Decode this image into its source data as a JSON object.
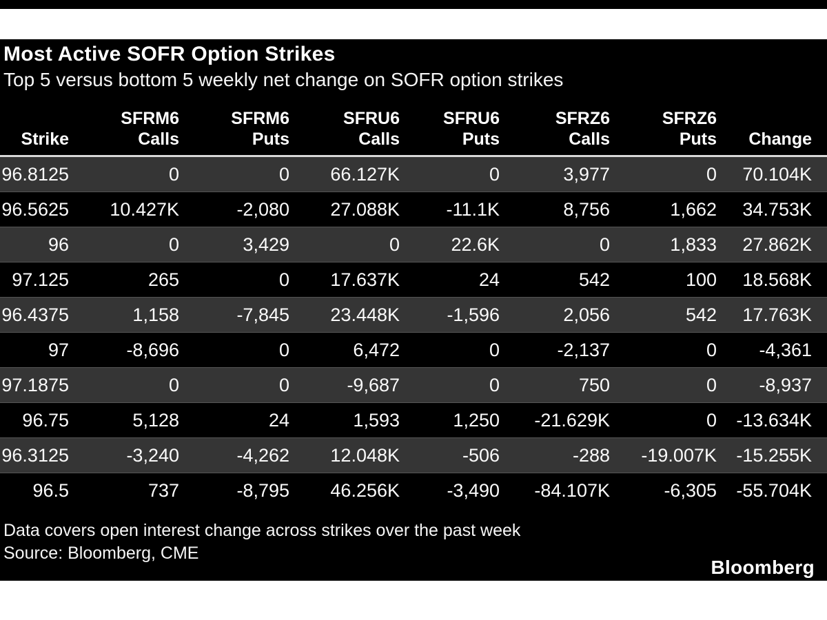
{
  "page": {
    "brand": "Bloomberg"
  },
  "colors": {
    "panel_bg": "#000000",
    "striped_row_bg": "#353535",
    "text": "#ffffff",
    "header_divider": "#d9d9d9"
  },
  "chart_data": {
    "type": "table",
    "title": "Most Active SOFR Option Strikes",
    "subtitle": "Top 5 versus bottom 5 weekly net change on SOFR option strikes",
    "columns": [
      {
        "group": "",
        "label": "Strike"
      },
      {
        "group": "SFRM6",
        "label": "Calls"
      },
      {
        "group": "SFRM6",
        "label": "Puts"
      },
      {
        "group": "SFRU6",
        "label": "Calls"
      },
      {
        "group": "SFRU6",
        "label": "Puts"
      },
      {
        "group": "SFRZ6",
        "label": "Calls"
      },
      {
        "group": "SFRZ6",
        "label": "Puts"
      },
      {
        "group": "",
        "label": "Change"
      }
    ],
    "rows": [
      [
        "96.8125",
        "0",
        "0",
        "66.127K",
        "0",
        "3,977",
        "0",
        "70.104K"
      ],
      [
        "96.5625",
        "10.427K",
        "-2,080",
        "27.088K",
        "-11.1K",
        "8,756",
        "1,662",
        "34.753K"
      ],
      [
        "96",
        "0",
        "3,429",
        "0",
        "22.6K",
        "0",
        "1,833",
        "27.862K"
      ],
      [
        "97.125",
        "265",
        "0",
        "17.637K",
        "24",
        "542",
        "100",
        "18.568K"
      ],
      [
        "96.4375",
        "1,158",
        "-7,845",
        "23.448K",
        "-1,596",
        "2,056",
        "542",
        "17.763K"
      ],
      [
        "97",
        "-8,696",
        "0",
        "6,472",
        "0",
        "-2,137",
        "0",
        "-4,361"
      ],
      [
        "97.1875",
        "0",
        "0",
        "-9,687",
        "0",
        "750",
        "0",
        "-8,937"
      ],
      [
        "96.75",
        "5,128",
        "24",
        "1,593",
        "1,250",
        "-21.629K",
        "0",
        "-13.634K"
      ],
      [
        "96.3125",
        "-3,240",
        "-4,262",
        "12.048K",
        "-506",
        "-288",
        "-19.007K",
        "-15.255K"
      ],
      [
        "96.5",
        "737",
        "-8,795",
        "46.256K",
        "-3,490",
        "-84.107K",
        "-6,305",
        "-55.704K"
      ]
    ],
    "note": "Data covers open interest change across strikes over the past week",
    "source": "Source: Bloomberg, CME"
  }
}
